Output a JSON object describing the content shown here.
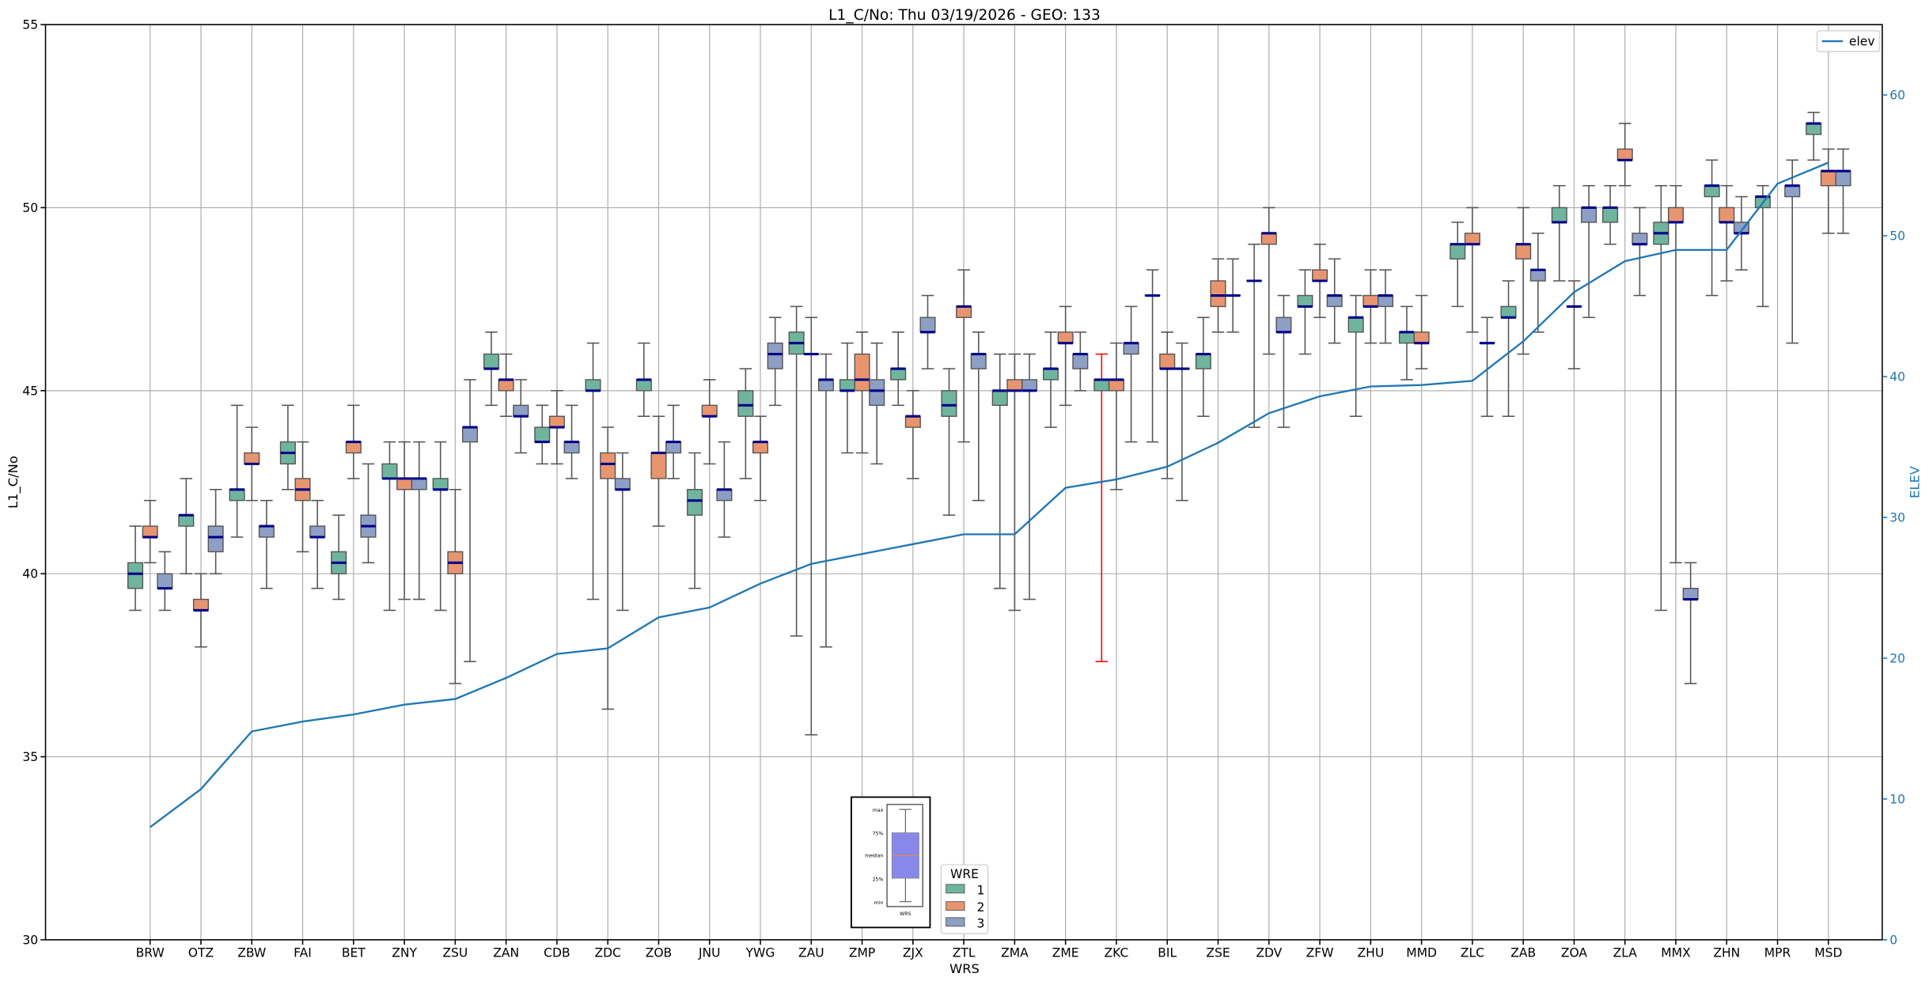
{
  "chart_data": {
    "type": "box",
    "title": "L1_C/No: Thu 03/19/2026 - GEO: 133",
    "xlabel": "WRS",
    "ylabel": "L1_C/No",
    "y2label": "ELEV",
    "ylim": [
      30,
      55
    ],
    "y2lim": [
      0,
      65
    ],
    "yticks": [
      "30",
      "35",
      "40",
      "45",
      "50",
      "55"
    ],
    "y2ticks": [
      "0",
      "10",
      "20",
      "30",
      "40",
      "50",
      "60"
    ],
    "grid": true,
    "box_fields": [
      "wre",
      "min",
      "q1",
      "median",
      "q3",
      "max"
    ],
    "colors": {
      "1": "#6fb59e",
      "2": "#e8956f",
      "3": "#8d9fc4",
      "median": "#00008b",
      "elev": "#1f77b4",
      "highlight_whisker": "#ff0000"
    },
    "categories": [
      "BRW",
      "OTZ",
      "ZBW",
      "FAI",
      "BET",
      "ZNY",
      "ZSU",
      "ZAN",
      "CDB",
      "ZDC",
      "ZOB",
      "JNU",
      "YWG",
      "ZAU",
      "ZMP",
      "ZJX",
      "ZTL",
      "ZMA",
      "ZME",
      "ZKC",
      "BIL",
      "ZSE",
      "ZDV",
      "ZFW",
      "ZHU",
      "MMD",
      "ZLC",
      "ZAB",
      "ZOA",
      "ZLA",
      "MMX",
      "ZHN",
      "MPR",
      "MSD"
    ],
    "boxes": [
      [
        [
          1,
          39.0,
          39.6,
          40.0,
          40.3,
          41.3
        ],
        [
          2,
          40.3,
          41.0,
          41.0,
          41.3,
          42.0
        ],
        [
          3,
          39.0,
          39.6,
          39.6,
          40.0,
          40.6
        ]
      ],
      [
        [
          1,
          40.0,
          41.3,
          41.6,
          41.6,
          42.6
        ],
        [
          2,
          38.0,
          39.0,
          39.0,
          39.3,
          40.0
        ],
        [
          3,
          40.0,
          40.6,
          41.0,
          41.3,
          42.3
        ]
      ],
      [
        [
          1,
          41.0,
          42.0,
          42.3,
          42.3,
          44.6
        ],
        [
          2,
          42.0,
          43.0,
          43.0,
          43.3,
          44.0
        ],
        [
          3,
          39.6,
          41.0,
          41.3,
          41.3,
          42.0
        ]
      ],
      [
        [
          1,
          42.3,
          43.0,
          43.3,
          43.6,
          44.6
        ],
        [
          2,
          40.6,
          42.0,
          42.3,
          42.6,
          43.6
        ],
        [
          3,
          39.6,
          41.0,
          41.0,
          41.3,
          42.0
        ]
      ],
      [
        [
          1,
          39.3,
          40.0,
          40.3,
          40.6,
          41.6
        ],
        [
          2,
          42.6,
          43.3,
          43.6,
          43.6,
          44.6
        ],
        [
          3,
          40.3,
          41.0,
          41.3,
          41.6,
          43.0
        ]
      ],
      [
        [
          1,
          39.0,
          42.6,
          42.6,
          43.0,
          43.6
        ],
        [
          2,
          39.3,
          42.3,
          42.6,
          42.6,
          43.6
        ],
        [
          3,
          39.3,
          42.3,
          42.6,
          42.6,
          43.6
        ]
      ],
      [
        [
          1,
          39.0,
          42.3,
          42.3,
          42.6,
          43.6
        ],
        [
          2,
          37.0,
          40.0,
          40.3,
          40.6,
          42.3
        ],
        [
          3,
          37.6,
          43.6,
          44.0,
          44.0,
          45.3
        ]
      ],
      [
        [
          1,
          44.6,
          45.6,
          45.6,
          46.0,
          46.6
        ],
        [
          2,
          44.3,
          45.0,
          45.3,
          45.3,
          46.0
        ],
        [
          3,
          43.3,
          44.3,
          44.3,
          44.6,
          45.3
        ]
      ],
      [
        [
          1,
          43.0,
          43.6,
          43.6,
          44.0,
          44.6
        ],
        [
          2,
          43.0,
          44.0,
          44.0,
          44.3,
          45.0
        ],
        [
          3,
          42.6,
          43.3,
          43.6,
          43.6,
          44.6
        ]
      ],
      [
        [
          1,
          39.3,
          45.0,
          45.0,
          45.3,
          46.3
        ],
        [
          2,
          36.3,
          42.6,
          43.0,
          43.3,
          44.0
        ],
        [
          3,
          39.0,
          42.3,
          42.3,
          42.6,
          43.3
        ]
      ],
      [
        [
          1,
          44.3,
          45.0,
          45.3,
          45.3,
          46.3
        ],
        [
          2,
          41.3,
          42.6,
          43.3,
          43.3,
          44.3
        ],
        [
          3,
          42.6,
          43.3,
          43.6,
          43.6,
          44.6
        ]
      ],
      [
        [
          1,
          39.6,
          41.6,
          42.0,
          42.3,
          43.3
        ],
        [
          2,
          43.0,
          44.3,
          44.3,
          44.6,
          45.3
        ],
        [
          3,
          41.0,
          42.0,
          42.3,
          42.3,
          43.6
        ]
      ],
      [
        [
          1,
          42.6,
          44.3,
          44.6,
          45.0,
          45.6
        ],
        [
          2,
          42.0,
          43.3,
          43.6,
          43.6,
          44.3
        ],
        [
          3,
          44.6,
          45.6,
          46.0,
          46.3,
          47.0
        ]
      ],
      [
        [
          1,
          38.3,
          46.0,
          46.3,
          46.6,
          47.3
        ],
        [
          2,
          35.6,
          46.0,
          46.0,
          46.0,
          47.0
        ],
        [
          3,
          38.0,
          45.0,
          45.3,
          45.3,
          46.0
        ]
      ],
      [
        [
          1,
          43.3,
          45.0,
          45.0,
          45.3,
          46.3
        ],
        [
          2,
          43.3,
          45.0,
          45.3,
          46.0,
          46.6
        ],
        [
          3,
          43.0,
          44.6,
          45.0,
          45.3,
          46.3
        ]
      ],
      [
        [
          1,
          44.6,
          45.3,
          45.6,
          45.6,
          46.6
        ],
        [
          2,
          42.6,
          44.0,
          44.3,
          44.3,
          45.0
        ],
        [
          3,
          45.6,
          46.6,
          46.6,
          47.0,
          47.6
        ]
      ],
      [
        [
          1,
          41.6,
          44.3,
          44.6,
          45.0,
          45.6
        ],
        [
          2,
          43.6,
          47.0,
          47.3,
          47.3,
          48.3
        ],
        [
          3,
          42.0,
          45.6,
          46.0,
          46.0,
          46.6
        ]
      ],
      [
        [
          1,
          39.6,
          44.6,
          45.0,
          45.0,
          46.0
        ],
        [
          2,
          39.0,
          45.0,
          45.0,
          45.3,
          46.0
        ],
        [
          3,
          39.3,
          45.0,
          45.0,
          45.3,
          46.0
        ]
      ],
      [
        [
          1,
          44.0,
          45.3,
          45.6,
          45.6,
          46.6
        ],
        [
          2,
          44.6,
          46.3,
          46.3,
          46.6,
          47.3
        ],
        [
          3,
          45.0,
          45.6,
          46.0,
          46.0,
          46.6
        ]
      ],
      [
        [
          1,
          37.6,
          45.0,
          45.3,
          45.3,
          46.0,
          "red"
        ],
        [
          2,
          42.3,
          45.0,
          45.3,
          45.3,
          46.3
        ],
        [
          3,
          43.6,
          46.0,
          46.3,
          46.3,
          47.3
        ]
      ],
      [
        [
          1,
          43.6,
          47.6,
          47.6,
          47.6,
          48.3
        ],
        [
          2,
          42.6,
          45.6,
          45.6,
          46.0,
          46.6
        ],
        [
          3,
          42.0,
          45.6,
          45.6,
          45.6,
          46.3
        ]
      ],
      [
        [
          1,
          44.3,
          45.6,
          46.0,
          46.0,
          47.0
        ],
        [
          2,
          46.6,
          47.3,
          47.6,
          48.0,
          48.6
        ],
        [
          3,
          46.6,
          47.6,
          47.6,
          47.6,
          48.6
        ]
      ],
      [
        [
          1,
          44.0,
          48.0,
          48.0,
          48.0,
          49.0
        ],
        [
          2,
          46.0,
          49.0,
          49.3,
          49.3,
          50.0
        ],
        [
          3,
          44.0,
          46.6,
          46.6,
          47.0,
          47.6
        ]
      ],
      [
        [
          1,
          46.0,
          47.3,
          47.3,
          47.6,
          48.3
        ],
        [
          2,
          47.0,
          48.0,
          48.0,
          48.3,
          49.0
        ],
        [
          3,
          46.3,
          47.3,
          47.6,
          47.6,
          48.6
        ]
      ],
      [
        [
          1,
          44.3,
          46.6,
          47.0,
          47.0,
          47.6
        ],
        [
          2,
          46.3,
          47.3,
          47.3,
          47.6,
          48.3
        ],
        [
          3,
          46.3,
          47.3,
          47.6,
          47.6,
          48.3
        ]
      ],
      [
        [
          1,
          45.3,
          46.3,
          46.6,
          46.6,
          47.3
        ],
        [
          2,
          45.6,
          46.3,
          46.3,
          46.6,
          47.6
        ]
      ],
      [
        [
          1,
          47.3,
          48.6,
          49.0,
          49.0,
          49.6
        ],
        [
          2,
          46.6,
          49.0,
          49.0,
          49.3,
          50.0
        ],
        [
          3,
          44.3,
          46.3,
          46.3,
          46.3,
          47.0
        ]
      ],
      [
        [
          1,
          44.3,
          47.0,
          47.0,
          47.3,
          48.0
        ],
        [
          2,
          46.0,
          48.6,
          49.0,
          49.0,
          50.0
        ],
        [
          3,
          46.6,
          48.0,
          48.3,
          48.3,
          49.3
        ]
      ],
      [
        [
          1,
          48.0,
          49.6,
          49.6,
          50.0,
          50.6
        ],
        [
          2,
          45.6,
          47.3,
          47.3,
          47.3,
          48.0
        ],
        [
          3,
          47.0,
          49.6,
          50.0,
          50.0,
          50.6
        ]
      ],
      [
        [
          1,
          49.0,
          49.6,
          50.0,
          50.0,
          50.6
        ],
        [
          2,
          50.6,
          51.3,
          51.3,
          51.6,
          52.3
        ],
        [
          3,
          47.6,
          49.0,
          49.0,
          49.3,
          50.0
        ]
      ],
      [
        [
          1,
          39.0,
          49.0,
          49.3,
          49.6,
          50.6
        ],
        [
          2,
          40.3,
          49.6,
          49.6,
          50.0,
          50.6
        ],
        [
          3,
          37.0,
          39.3,
          39.3,
          39.6,
          40.3
        ]
      ],
      [
        [
          1,
          47.6,
          50.3,
          50.6,
          50.6,
          51.3
        ],
        [
          2,
          48.0,
          49.6,
          49.6,
          50.0,
          50.6
        ],
        [
          3,
          48.3,
          49.3,
          49.3,
          49.6,
          50.3
        ]
      ],
      [
        [
          1,
          47.3,
          50.0,
          50.3,
          50.3,
          50.6
        ],
        [
          3,
          46.3,
          50.3,
          50.6,
          50.6,
          51.3
        ]
      ],
      [
        [
          1,
          51.3,
          52.0,
          52.3,
          52.3,
          52.6
        ],
        [
          2,
          49.3,
          50.6,
          51.0,
          51.0,
          51.6
        ],
        [
          3,
          49.3,
          50.6,
          51.0,
          51.0,
          51.6
        ]
      ]
    ],
    "elev": {
      "name": "elev",
      "values": [
        8.0,
        10.7,
        14.8,
        15.5,
        16.0,
        16.7,
        17.1,
        18.6,
        20.3,
        20.7,
        22.9,
        23.6,
        25.3,
        26.7,
        27.4,
        28.1,
        28.8,
        28.8,
        32.1,
        32.7,
        33.6,
        35.3,
        37.4,
        38.6,
        39.3,
        39.4,
        39.7,
        42.5,
        46.0,
        48.2,
        49.0,
        49.0,
        53.7,
        55.2
      ]
    },
    "legend_elev": {
      "label": "elev",
      "placement": "top-right"
    },
    "legend_wre": {
      "title": "WRE",
      "items": [
        "1",
        "2",
        "3"
      ],
      "placement": "bottom-center"
    },
    "inset_key": {
      "labels": [
        "max",
        "75%",
        "median",
        "25%",
        "min"
      ],
      "xlabel": "WRS"
    }
  }
}
